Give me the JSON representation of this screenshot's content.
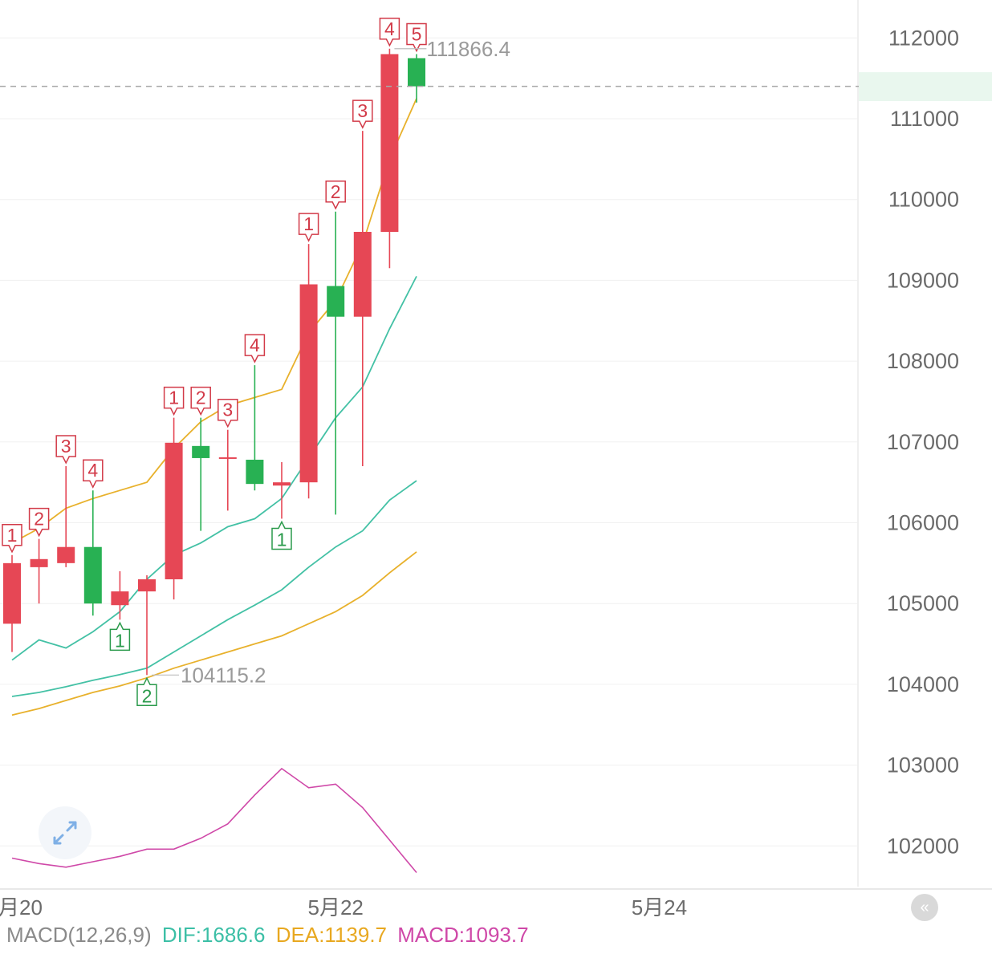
{
  "chart_data": {
    "type": "candlestick",
    "y_axis": {
      "ticks": [
        112000,
        111000,
        110000,
        109000,
        108000,
        107000,
        106000,
        105000,
        104000,
        103000,
        102000
      ],
      "range": [
        101300,
        112600
      ],
      "position": "right",
      "grid": true
    },
    "x_axis": {
      "tick_labels": [
        "月20",
        "5月22",
        "5月24"
      ],
      "tick_index": [
        0,
        12,
        24
      ]
    },
    "current_price": {
      "value": 111401.3,
      "label": "111401.3",
      "color": "#1aa34a"
    },
    "annotations": {
      "high": {
        "value": 111866.4,
        "label": "111866.4",
        "index": 14
      },
      "low": {
        "value": 104115.2,
        "label": "104115.2",
        "index": 5
      }
    },
    "candles": [
      {
        "i": 0,
        "open": 105500,
        "close": 104750,
        "high": 105600,
        "low": 104400,
        "td": "1",
        "td_pos": "above"
      },
      {
        "i": 1,
        "open": 105550,
        "close": 105450,
        "high": 105800,
        "low": 105000,
        "td": "2",
        "td_pos": "above"
      },
      {
        "i": 2,
        "open": 105700,
        "close": 105500,
        "high": 106700,
        "low": 105450,
        "td": "3",
        "td_pos": "above"
      },
      {
        "i": 3,
        "open": 105000,
        "close": 105700,
        "high": 106400,
        "low": 104850,
        "td": "4",
        "td_pos": "above"
      },
      {
        "i": 4,
        "open": 105150,
        "close": 104980,
        "high": 105400,
        "low": 104800,
        "td": "1",
        "td_pos": "below"
      },
      {
        "i": 5,
        "open": 105300,
        "close": 105150,
        "high": 105350,
        "low": 104115.2,
        "td": "2",
        "td_pos": "below"
      },
      {
        "i": 6,
        "open": 106990,
        "close": 105300,
        "high": 107300,
        "low": 105050,
        "td": "1",
        "td_pos": "above"
      },
      {
        "i": 7,
        "open": 106800,
        "close": 106950,
        "high": 107300,
        "low": 105900,
        "td": "2",
        "td_pos": "above"
      },
      {
        "i": 8,
        "open": 106810,
        "close": 106790,
        "high": 107150,
        "low": 106150,
        "td": "3",
        "td_pos": "above"
      },
      {
        "i": 9,
        "open": 106480,
        "close": 106780,
        "high": 107950,
        "low": 106400,
        "td": "4",
        "td_pos": "above"
      },
      {
        "i": 10,
        "open": 106500,
        "close": 106460,
        "high": 106750,
        "low": 106050,
        "td": "1",
        "td_pos": "below"
      },
      {
        "i": 11,
        "open": 108950,
        "close": 106500,
        "high": 109450,
        "low": 106300,
        "td": "1",
        "td_pos": "above"
      },
      {
        "i": 12,
        "open": 108550,
        "close": 108930,
        "high": 109850,
        "low": 106100,
        "td": "2",
        "td_pos": "above"
      },
      {
        "i": 13,
        "open": 109600,
        "close": 108550,
        "high": 110850,
        "low": 106700,
        "td": "3",
        "td_pos": "above"
      },
      {
        "i": 14,
        "open": 111800,
        "close": 109600,
        "high": 111866.4,
        "low": 109150,
        "td": "4",
        "td_pos": "above"
      },
      {
        "i": 15,
        "open": 111401.3,
        "close": 111750,
        "high": 111800,
        "low": 111200,
        "td": "5",
        "td_pos": "above"
      }
    ],
    "moving_averages": [
      {
        "color": "#e8b12c",
        "values": [
          105750,
          105930,
          106180,
          106300,
          106400,
          106500,
          106920,
          107250,
          107450,
          107550,
          107650,
          108350,
          108750,
          109450,
          110500,
          111250
        ]
      },
      {
        "color": "#43c1a5",
        "values": [
          104300,
          104550,
          104450,
          104650,
          104900,
          105300,
          105600,
          105750,
          105950,
          106050,
          106300,
          106800,
          107300,
          107680,
          108400,
          109050
        ]
      },
      {
        "color": "#43c1a5",
        "values": [
          103850,
          103900,
          103970,
          104050,
          104120,
          104200,
          104400,
          104600,
          104800,
          104980,
          105170,
          105450,
          105700,
          105900,
          106280,
          106520
        ]
      },
      {
        "color": "#e8b12c",
        "values": [
          103620,
          103700,
          103800,
          103900,
          103980,
          104080,
          104200,
          104300,
          104400,
          104500,
          104600,
          104750,
          104900,
          105100,
          105380,
          105640
        ]
      }
    ],
    "macd_series": {
      "color": "#cf48a8",
      "values": [
        -0.1,
        -0.25,
        -0.35,
        -0.2,
        -0.05,
        0.15,
        0.15,
        0.45,
        0.85,
        1.65,
        2.38,
        1.85,
        1.95,
        1.3,
        0.4,
        -0.5
      ]
    },
    "legend": {
      "label": "MACD(12,26,9)",
      "dif_label": "DIF:1686.6",
      "dea_label": "DEA:1139.7",
      "macd_label": "MACD:1093.7"
    },
    "colors": {
      "up": "#28b153",
      "down": "#e64755",
      "td_text": "#d23a48",
      "td_below": "#2a9a4b",
      "grid": "#f0f0f0"
    }
  }
}
